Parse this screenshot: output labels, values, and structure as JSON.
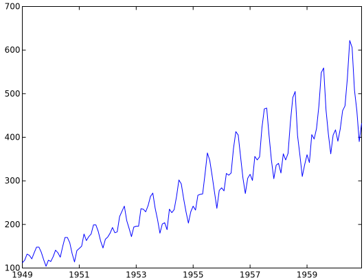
{
  "chart_data": {
    "type": "line",
    "title": "",
    "xlabel": "",
    "ylabel": "",
    "x_start": "1949-01",
    "x_frequency": "monthly",
    "xlim": [
      "1949-01",
      "1960-12"
    ],
    "ylim": [
      100,
      700
    ],
    "xticks": [
      "1949",
      "1951",
      "1953",
      "1955",
      "1957",
      "1959"
    ],
    "yticks": [
      "100",
      "200",
      "300",
      "400",
      "500",
      "600",
      "700"
    ],
    "grid": false,
    "legend": "none",
    "series": [
      {
        "color": "#0000ff",
        "values": [
          112,
          118,
          132,
          129,
          121,
          135,
          148,
          148,
          136,
          119,
          104,
          118,
          115,
          126,
          141,
          135,
          125,
          149,
          170,
          170,
          158,
          133,
          114,
          140,
          145,
          150,
          178,
          163,
          172,
          178,
          199,
          199,
          184,
          162,
          146,
          166,
          171,
          180,
          193,
          181,
          183,
          218,
          230,
          242,
          209,
          191,
          172,
          194,
          196,
          196,
          236,
          235,
          229,
          243,
          264,
          272,
          237,
          211,
          180,
          201,
          204,
          188,
          235,
          227,
          234,
          264,
          302,
          293,
          259,
          229,
          203,
          229,
          242,
          233,
          267,
          269,
          270,
          315,
          364,
          347,
          312,
          274,
          237,
          278,
          284,
          277,
          317,
          313,
          318,
          374,
          413,
          405,
          355,
          306,
          271,
          306,
          315,
          301,
          356,
          348,
          355,
          422,
          465,
          467,
          404,
          347,
          305,
          336,
          340,
          318,
          362,
          348,
          363,
          435,
          491,
          505,
          404,
          359,
          310,
          337,
          360,
          342,
          406,
          396,
          420,
          472,
          548,
          559,
          463,
          407,
          362,
          405,
          417,
          391,
          419,
          461,
          472,
          535,
          622,
          606,
          508,
          461,
          390,
          432
        ]
      }
    ]
  }
}
